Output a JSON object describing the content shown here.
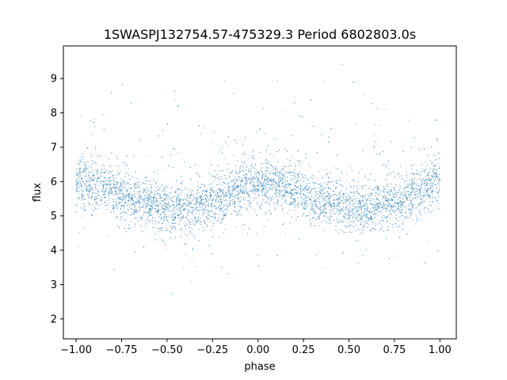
{
  "chart_data": {
    "type": "scatter",
    "title": "1SWASPJ132754.57-475329.3 Period 6802803.0s",
    "xlabel": "phase",
    "ylabel": "flux",
    "xlim": [
      -1.07,
      1.09
    ],
    "ylim": [
      1.42,
      9.95
    ],
    "xticks": [
      -1.0,
      -0.75,
      -0.5,
      -0.25,
      0.0,
      0.25,
      0.5,
      0.75,
      1.0
    ],
    "xtick_labels": [
      "−1.00",
      "−0.75",
      "−0.50",
      "−0.25",
      "0.00",
      "0.25",
      "0.50",
      "0.75",
      "1.00"
    ],
    "yticks": [
      2,
      3,
      4,
      5,
      6,
      7,
      8,
      9
    ],
    "ytick_labels": [
      "2",
      "3",
      "4",
      "5",
      "6",
      "7",
      "8",
      "9"
    ],
    "grid": false,
    "marker_color": "#1f77b4",
    "light_curve": {
      "phase": [
        -1.0,
        -0.95,
        -0.9,
        -0.85,
        -0.8,
        -0.75,
        -0.7,
        -0.65,
        -0.6,
        -0.55,
        -0.5,
        -0.45,
        -0.4,
        -0.35,
        -0.3,
        -0.25,
        -0.2,
        -0.15,
        -0.1,
        -0.05,
        0.0,
        0.05,
        0.1,
        0.15,
        0.2,
        0.25,
        0.3,
        0.35,
        0.4,
        0.45,
        0.5,
        0.55,
        0.6,
        0.65,
        0.7,
        0.75,
        0.8,
        0.85,
        0.9,
        0.95,
        1.0
      ],
      "median_flux": [
        6.0,
        5.95,
        5.9,
        5.85,
        5.75,
        5.6,
        5.5,
        5.45,
        5.4,
        5.3,
        5.25,
        5.2,
        5.2,
        5.25,
        5.3,
        5.4,
        5.5,
        5.6,
        5.75,
        5.9,
        6.0,
        5.95,
        5.9,
        5.85,
        5.75,
        5.6,
        5.5,
        5.45,
        5.4,
        5.3,
        5.25,
        5.2,
        5.2,
        5.25,
        5.3,
        5.4,
        5.5,
        5.6,
        5.75,
        5.9,
        6.0
      ],
      "scatter_sigma": 0.35
    }
  }
}
